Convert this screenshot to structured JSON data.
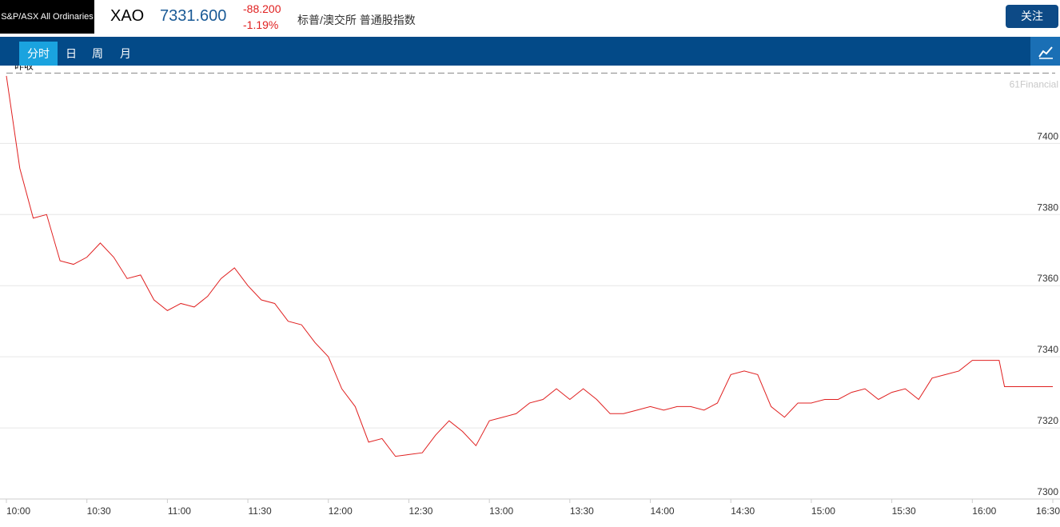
{
  "header": {
    "index_name": "S&P/ASX All Ordinaries",
    "symbol": "XAO",
    "price": "7331.600",
    "change": "-88.200",
    "change_pct": "-1.19%",
    "description": "标普/澳交所 普通股指数",
    "follow_button": "关注"
  },
  "tabs": [
    "分时",
    "日",
    "周",
    "月"
  ],
  "chart_data": {
    "type": "line",
    "watermark": "61Financial",
    "reference": {
      "label": "昨收",
      "value": 7419.8
    },
    "x": [
      "10:00",
      "10:05",
      "10:10",
      "10:15",
      "10:20",
      "10:25",
      "10:30",
      "10:35",
      "10:40",
      "10:45",
      "10:50",
      "10:55",
      "11:00",
      "11:05",
      "11:10",
      "11:15",
      "11:20",
      "11:25",
      "11:30",
      "11:35",
      "11:40",
      "11:45",
      "11:50",
      "11:55",
      "12:00",
      "12:05",
      "12:10",
      "12:15",
      "12:20",
      "12:25",
      "12:30",
      "12:35",
      "12:40",
      "12:45",
      "12:50",
      "12:55",
      "13:00",
      "13:05",
      "13:10",
      "13:15",
      "13:20",
      "13:25",
      "13:30",
      "13:35",
      "13:40",
      "13:45",
      "13:50",
      "13:55",
      "14:00",
      "14:05",
      "14:10",
      "14:15",
      "14:20",
      "14:25",
      "14:30",
      "14:35",
      "14:40",
      "14:45",
      "14:50",
      "14:55",
      "15:00",
      "15:05",
      "15:10",
      "15:15",
      "15:20",
      "15:25",
      "15:30",
      "15:35",
      "15:40",
      "15:45",
      "15:50",
      "15:55",
      "16:00",
      "16:05",
      "16:10",
      "16:12",
      "16:30"
    ],
    "series": [
      {
        "name": "XAO",
        "color": "#e02020",
        "values": [
          7419,
          7393,
          7379,
          7380,
          7367,
          7366,
          7368,
          7372,
          7368,
          7362,
          7363,
          7356,
          7353,
          7355,
          7354,
          7357,
          7362,
          7365,
          7360,
          7356,
          7355,
          7350,
          7349,
          7344,
          7340,
          7331,
          7326,
          7316,
          7317,
          7312,
          7312.5,
          7313,
          7318,
          7322,
          7319,
          7315,
          7322,
          7323,
          7324,
          7327,
          7328,
          7331,
          7328,
          7331,
          7328,
          7324,
          7324,
          7325,
          7326,
          7325,
          7326,
          7326,
          7325,
          7327,
          7335,
          7336,
          7335,
          7326,
          7323,
          7327,
          7327,
          7328,
          7328,
          7330,
          7331,
          7328,
          7330,
          7331,
          7328,
          7334,
          7335,
          7336,
          7339,
          7339,
          7339,
          7331.6,
          7331.6
        ]
      }
    ],
    "xlim": [
      "10:00",
      "16:30"
    ],
    "xticks": [
      "10:00",
      "10:30",
      "11:00",
      "11:30",
      "12:00",
      "12:30",
      "13:00",
      "13:30",
      "14:00",
      "14:30",
      "15:00",
      "15:30",
      "16:00",
      "16:30"
    ],
    "ylim": [
      7300,
      7421
    ],
    "yticks": [
      7300,
      7320,
      7340,
      7360,
      7380,
      7400
    ],
    "grid": true
  }
}
